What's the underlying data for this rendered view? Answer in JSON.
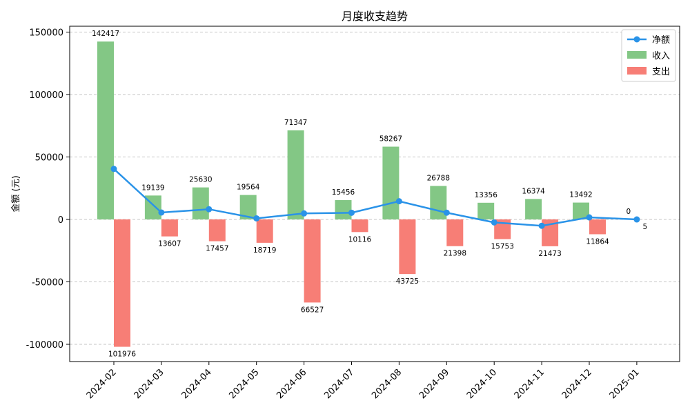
{
  "chart_data": {
    "type": "bar",
    "title": "月度收支趋势",
    "xlabel": "",
    "ylabel": "金额 (元)",
    "ylim": [
      -110000,
      155000
    ],
    "yticks": [
      -100000,
      -50000,
      0,
      50000,
      100000,
      150000
    ],
    "grid": true,
    "legend_position": "top-right",
    "categories": [
      "2024-02",
      "2024-03",
      "2024-04",
      "2024-05",
      "2024-06",
      "2024-07",
      "2024-08",
      "2024-09",
      "2024-10",
      "2024-11",
      "2024-12",
      "2025-01"
    ],
    "series": [
      {
        "name": "净额",
        "kind": "line",
        "color": "#2a93e8",
        "values": [
          40441,
          5532,
          8173,
          845,
          4820,
          5340,
          14542,
          5390,
          -2397,
          -5099,
          1628,
          -5
        ]
      },
      {
        "name": "收入",
        "kind": "bar",
        "color": "#83c785",
        "values": [
          142417,
          19139,
          25630,
          19564,
          71347,
          15456,
          58267,
          26788,
          13356,
          16374,
          13492,
          0
        ]
      },
      {
        "name": "支出",
        "kind": "bar",
        "color": "#f77e76",
        "values": [
          -101976,
          -13607,
          -17457,
          -18719,
          -66527,
          -10116,
          -43725,
          -21398,
          -15753,
          -21473,
          -11864,
          -5
        ]
      }
    ],
    "income_labels": [
      "142417",
      "19139",
      "25630",
      "19564",
      "71347",
      "15456",
      "58267",
      "26788",
      "13356",
      "16374",
      "13492",
      "0"
    ],
    "expense_labels": [
      "101976",
      "13607",
      "17457",
      "18719",
      "66527",
      "10116",
      "43725",
      "21398",
      "15753",
      "21473",
      "11864",
      "5"
    ]
  }
}
